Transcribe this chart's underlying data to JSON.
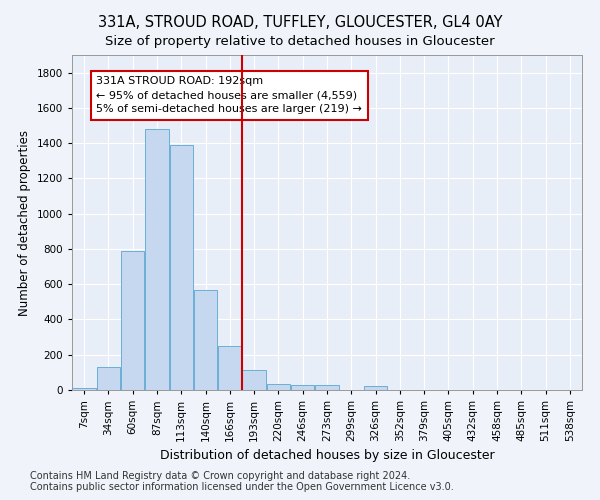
{
  "title1": "331A, STROUD ROAD, TUFFLEY, GLOUCESTER, GL4 0AY",
  "title2": "Size of property relative to detached houses in Gloucester",
  "xlabel": "Distribution of detached houses by size in Gloucester",
  "ylabel": "Number of detached properties",
  "footer1": "Contains HM Land Registry data © Crown copyright and database right 2024.",
  "footer2": "Contains public sector information licensed under the Open Government Licence v3.0.",
  "bar_labels": [
    "7sqm",
    "34sqm",
    "60sqm",
    "87sqm",
    "113sqm",
    "140sqm",
    "166sqm",
    "193sqm",
    "220sqm",
    "246sqm",
    "273sqm",
    "299sqm",
    "326sqm",
    "352sqm",
    "379sqm",
    "405sqm",
    "432sqm",
    "458sqm",
    "485sqm",
    "511sqm",
    "538sqm"
  ],
  "bar_values": [
    10,
    130,
    790,
    1480,
    1390,
    570,
    250,
    115,
    35,
    30,
    28,
    0,
    20,
    0,
    0,
    0,
    0,
    0,
    0,
    0,
    0
  ],
  "bar_color": "#c5d8f0",
  "bar_edge_color": "#6baed6",
  "vline_x": 7,
  "vline_color": "#cc0000",
  "annotation_line1": "331A STROUD ROAD: 192sqm",
  "annotation_line2": "← 95% of detached houses are smaller (4,559)",
  "annotation_line3": "5% of semi-detached houses are larger (219) →",
  "annotation_box_color": "#cc0000",
  "ylim": [
    0,
    1900
  ],
  "yticks": [
    0,
    200,
    400,
    600,
    800,
    1000,
    1200,
    1400,
    1600,
    1800
  ],
  "background_color": "#f0f4fa",
  "plot_bg_color": "#e8eef8",
  "grid_color": "#ffffff",
  "title_fontsize": 10.5,
  "subtitle_fontsize": 9.5,
  "axis_label_fontsize": 8.5,
  "tick_fontsize": 7.5,
  "annotation_fontsize": 8,
  "footer_fontsize": 7
}
